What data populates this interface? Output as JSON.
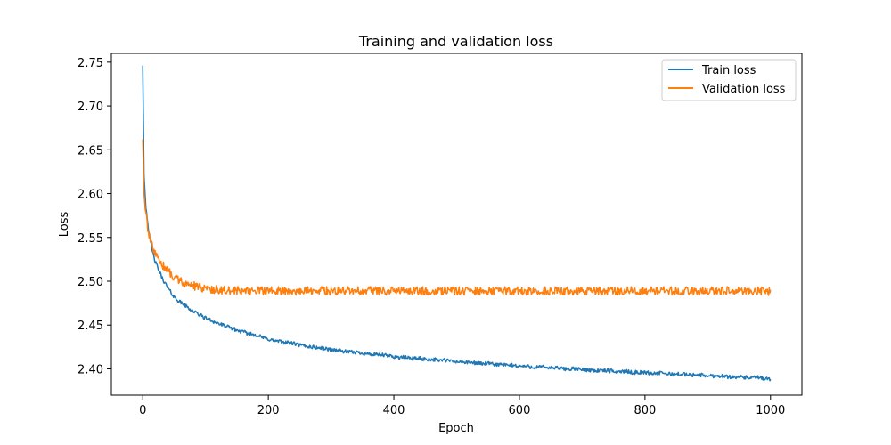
{
  "chart_data": {
    "type": "line",
    "title": "Training and validation loss",
    "xlabel": "Epoch",
    "ylabel": "Loss",
    "xlim": [
      -50,
      1050
    ],
    "ylim": [
      2.37,
      2.76
    ],
    "xticks": [
      0,
      200,
      400,
      600,
      800,
      1000
    ],
    "xtick_labels": [
      "0",
      "200",
      "400",
      "600",
      "800",
      "1000"
    ],
    "yticks": [
      2.4,
      2.45,
      2.5,
      2.55,
      2.6,
      2.65,
      2.7,
      2.75
    ],
    "ytick_labels": [
      "2.40",
      "2.45",
      "2.50",
      "2.55",
      "2.60",
      "2.65",
      "2.70",
      "2.75"
    ],
    "grid": false,
    "legend_position": "top-right",
    "series": [
      {
        "name": "Train loss",
        "color": "#1f77b4",
        "x": [
          0,
          2,
          5,
          10,
          15,
          20,
          30,
          40,
          50,
          60,
          70,
          80,
          90,
          100,
          110,
          120,
          130,
          140,
          150,
          160,
          170,
          180,
          190,
          200,
          210,
          220,
          230,
          240,
          250,
          260,
          270,
          280,
          290,
          300,
          310,
          320,
          330,
          340,
          350,
          360,
          370,
          380,
          390,
          400,
          410,
          420,
          430,
          440,
          450,
          460,
          470,
          480,
          490,
          500,
          510,
          520,
          530,
          540,
          550,
          560,
          570,
          580,
          590,
          600,
          610,
          620,
          630,
          640,
          650,
          660,
          670,
          680,
          690,
          700,
          710,
          720,
          730,
          740,
          750,
          760,
          770,
          780,
          790,
          800,
          810,
          820,
          830,
          840,
          850,
          860,
          870,
          880,
          890,
          900,
          910,
          920,
          930,
          940,
          950,
          960,
          970,
          980,
          990,
          1000
        ],
        "values": [
          2.746,
          2.62,
          2.585,
          2.555,
          2.535,
          2.522,
          2.505,
          2.492,
          2.482,
          2.476,
          2.471,
          2.466,
          2.462,
          2.458,
          2.455,
          2.452,
          2.449,
          2.447,
          2.444,
          2.442,
          2.44,
          2.439,
          2.436,
          2.434,
          2.432,
          2.431,
          2.43,
          2.429,
          2.427,
          2.426,
          2.425,
          2.424,
          2.423,
          2.422,
          2.421,
          2.42,
          2.419,
          2.419,
          2.418,
          2.417,
          2.416,
          2.416,
          2.415,
          2.414,
          2.413,
          2.413,
          2.412,
          2.412,
          2.411,
          2.411,
          2.41,
          2.41,
          2.409,
          2.408,
          2.408,
          2.407,
          2.407,
          2.406,
          2.406,
          2.405,
          2.405,
          2.404,
          2.404,
          2.403,
          2.403,
          2.402,
          2.402,
          2.402,
          2.401,
          2.401,
          2.4,
          2.4,
          2.4,
          2.399,
          2.399,
          2.398,
          2.398,
          2.398,
          2.397,
          2.397,
          2.397,
          2.396,
          2.396,
          2.396,
          2.395,
          2.395,
          2.395,
          2.394,
          2.394,
          2.394,
          2.393,
          2.393,
          2.393,
          2.392,
          2.392,
          2.392,
          2.391,
          2.391,
          2.391,
          2.39,
          2.39,
          2.39,
          2.389,
          2.388
        ]
      },
      {
        "name": "Validation loss",
        "color": "#ff7f0e",
        "x": [
          0,
          2,
          5,
          10,
          15,
          20,
          30,
          40,
          50,
          60,
          70,
          80,
          90,
          100,
          110,
          120,
          130,
          140,
          150,
          160,
          170,
          180,
          190,
          200,
          210,
          220,
          230,
          240,
          250,
          260,
          270,
          280,
          290,
          300,
          310,
          320,
          330,
          340,
          350,
          360,
          370,
          380,
          390,
          400,
          410,
          420,
          430,
          440,
          450,
          460,
          470,
          480,
          490,
          500,
          510,
          520,
          530,
          540,
          550,
          560,
          570,
          580,
          590,
          600,
          610,
          620,
          630,
          640,
          650,
          660,
          670,
          680,
          690,
          700,
          710,
          720,
          730,
          740,
          750,
          760,
          770,
          780,
          790,
          800,
          810,
          820,
          830,
          840,
          850,
          860,
          870,
          880,
          890,
          900,
          910,
          920,
          930,
          940,
          950,
          960,
          970,
          980,
          990,
          1000
        ],
        "values": [
          2.662,
          2.6,
          2.575,
          2.552,
          2.54,
          2.53,
          2.52,
          2.512,
          2.505,
          2.5,
          2.497,
          2.495,
          2.493,
          2.492,
          2.491,
          2.49,
          2.49,
          2.489,
          2.489,
          2.489,
          2.489,
          2.489,
          2.489,
          2.489,
          2.489,
          2.489,
          2.489,
          2.489,
          2.489,
          2.489,
          2.489,
          2.489,
          2.489,
          2.489,
          2.489,
          2.489,
          2.489,
          2.489,
          2.489,
          2.489,
          2.489,
          2.489,
          2.489,
          2.489,
          2.489,
          2.489,
          2.489,
          2.489,
          2.489,
          2.489,
          2.489,
          2.489,
          2.489,
          2.489,
          2.489,
          2.489,
          2.489,
          2.489,
          2.489,
          2.489,
          2.489,
          2.489,
          2.489,
          2.489,
          2.489,
          2.489,
          2.489,
          2.489,
          2.489,
          2.489,
          2.489,
          2.489,
          2.489,
          2.489,
          2.489,
          2.489,
          2.489,
          2.489,
          2.489,
          2.489,
          2.489,
          2.489,
          2.489,
          2.489,
          2.489,
          2.489,
          2.489,
          2.489,
          2.489,
          2.489,
          2.489,
          2.489,
          2.489,
          2.489,
          2.489,
          2.489,
          2.489,
          2.489,
          2.489,
          2.489,
          2.489,
          2.489,
          2.489,
          2.488
        ]
      }
    ]
  }
}
